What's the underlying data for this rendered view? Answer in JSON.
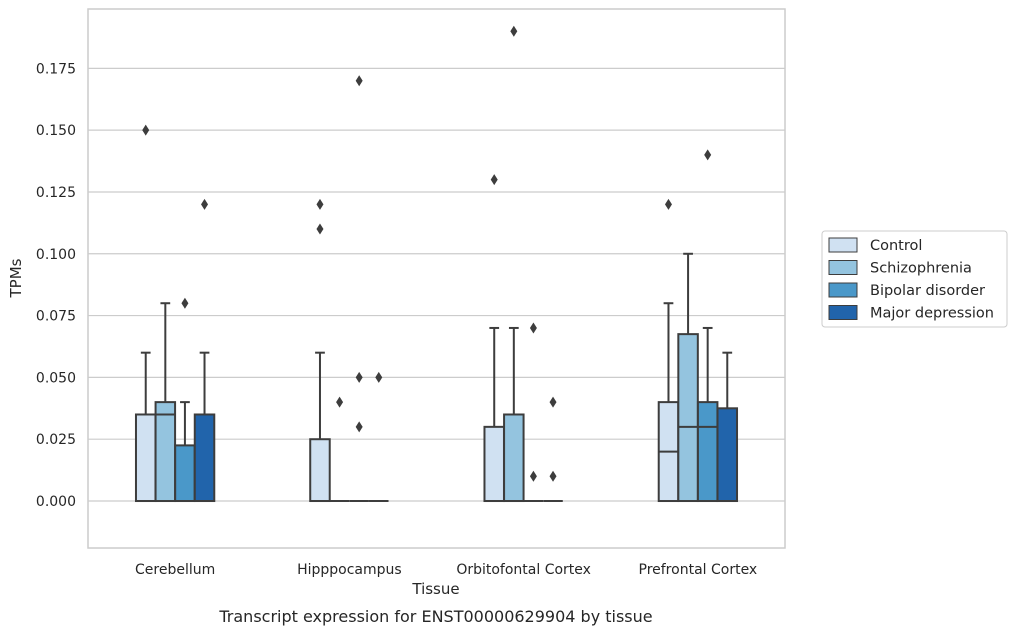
{
  "chart_data": {
    "type": "boxplot",
    "title": "",
    "caption": "Transcript expression for ENST00000629904 by tissue",
    "xlabel": "Tissue",
    "ylabel": "TPMs",
    "ylim": [
      -0.019,
      0.199
    ],
    "yticks": [
      "0.000",
      "0.025",
      "0.050",
      "0.075",
      "0.100",
      "0.125",
      "0.150",
      "0.175"
    ],
    "ytick_values": [
      0,
      0.025,
      0.05,
      0.075,
      0.1,
      0.125,
      0.15,
      0.175
    ],
    "grid": "horizontal",
    "legend_position": "right",
    "categories": [
      "Cerebellum",
      "Hipppocampus",
      "Orbitofontal Cortex",
      "Prefrontal Cortex"
    ],
    "series": [
      {
        "name": "Control",
        "color": "#d0e1f2",
        "boxes": [
          {
            "q1": 0,
            "median": 0,
            "q3": 0.035,
            "whisker_low": 0,
            "whisker_high": 0.06,
            "outliers": [
              0.15
            ]
          },
          {
            "q1": 0,
            "median": 0,
            "q3": 0.025,
            "whisker_low": 0,
            "whisker_high": 0.06,
            "outliers": [
              0.11,
              0.12
            ]
          },
          {
            "q1": 0,
            "median": 0,
            "q3": 0.03,
            "whisker_low": 0,
            "whisker_high": 0.07,
            "outliers": [
              0.13
            ]
          },
          {
            "q1": 0,
            "median": 0.02,
            "q3": 0.04,
            "whisker_low": 0,
            "whisker_high": 0.08,
            "outliers": [
              0.12
            ]
          }
        ]
      },
      {
        "name": "Schizophrenia",
        "color": "#94c4df",
        "boxes": [
          {
            "q1": 0,
            "median": 0.035,
            "q3": 0.04,
            "whisker_low": 0,
            "whisker_high": 0.08,
            "outliers": []
          },
          {
            "q1": 0,
            "median": 0,
            "q3": 0,
            "whisker_low": 0,
            "whisker_high": 0,
            "outliers": [
              0.04
            ]
          },
          {
            "q1": 0,
            "median": 0,
            "q3": 0.035,
            "whisker_low": 0,
            "whisker_high": 0.07,
            "outliers": [
              0.19
            ]
          },
          {
            "q1": 0,
            "median": 0.03,
            "q3": 0.0675,
            "whisker_low": 0,
            "whisker_high": 0.1,
            "outliers": []
          }
        ]
      },
      {
        "name": "Bipolar disorder",
        "color": "#4a98c9",
        "boxes": [
          {
            "q1": 0,
            "median": 0,
            "q3": 0.0225,
            "whisker_low": 0,
            "whisker_high": 0.04,
            "outliers": [
              0.08
            ]
          },
          {
            "q1": 0,
            "median": 0,
            "q3": 0,
            "whisker_low": 0,
            "whisker_high": 0,
            "outliers": [
              0.03,
              0.05,
              0.17
            ]
          },
          {
            "q1": 0,
            "median": 0,
            "q3": 0,
            "whisker_low": 0,
            "whisker_high": 0,
            "outliers": [
              0.01,
              0.07
            ]
          },
          {
            "q1": 0,
            "median": 0.03,
            "q3": 0.04,
            "whisker_low": 0,
            "whisker_high": 0.07,
            "outliers": [
              0.14
            ]
          }
        ]
      },
      {
        "name": "Major depression",
        "color": "#2164ab",
        "boxes": [
          {
            "q1": 0,
            "median": 0,
            "q3": 0.035,
            "whisker_low": 0,
            "whisker_high": 0.06,
            "outliers": [
              0.12
            ]
          },
          {
            "q1": 0,
            "median": 0,
            "q3": 0,
            "whisker_low": 0,
            "whisker_high": 0,
            "outliers": [
              0.05
            ]
          },
          {
            "q1": 0,
            "median": 0,
            "q3": 0,
            "whisker_low": 0,
            "whisker_high": 0,
            "outliers": [
              0.01,
              0.04
            ]
          },
          {
            "q1": 0,
            "median": 0,
            "q3": 0.0375,
            "whisker_low": 0,
            "whisker_high": 0.06,
            "outliers": []
          }
        ]
      }
    ],
    "colors": {
      "grid": "#cccccc",
      "box_edge": "#3d3d3d",
      "frame": "#cccccc"
    }
  }
}
